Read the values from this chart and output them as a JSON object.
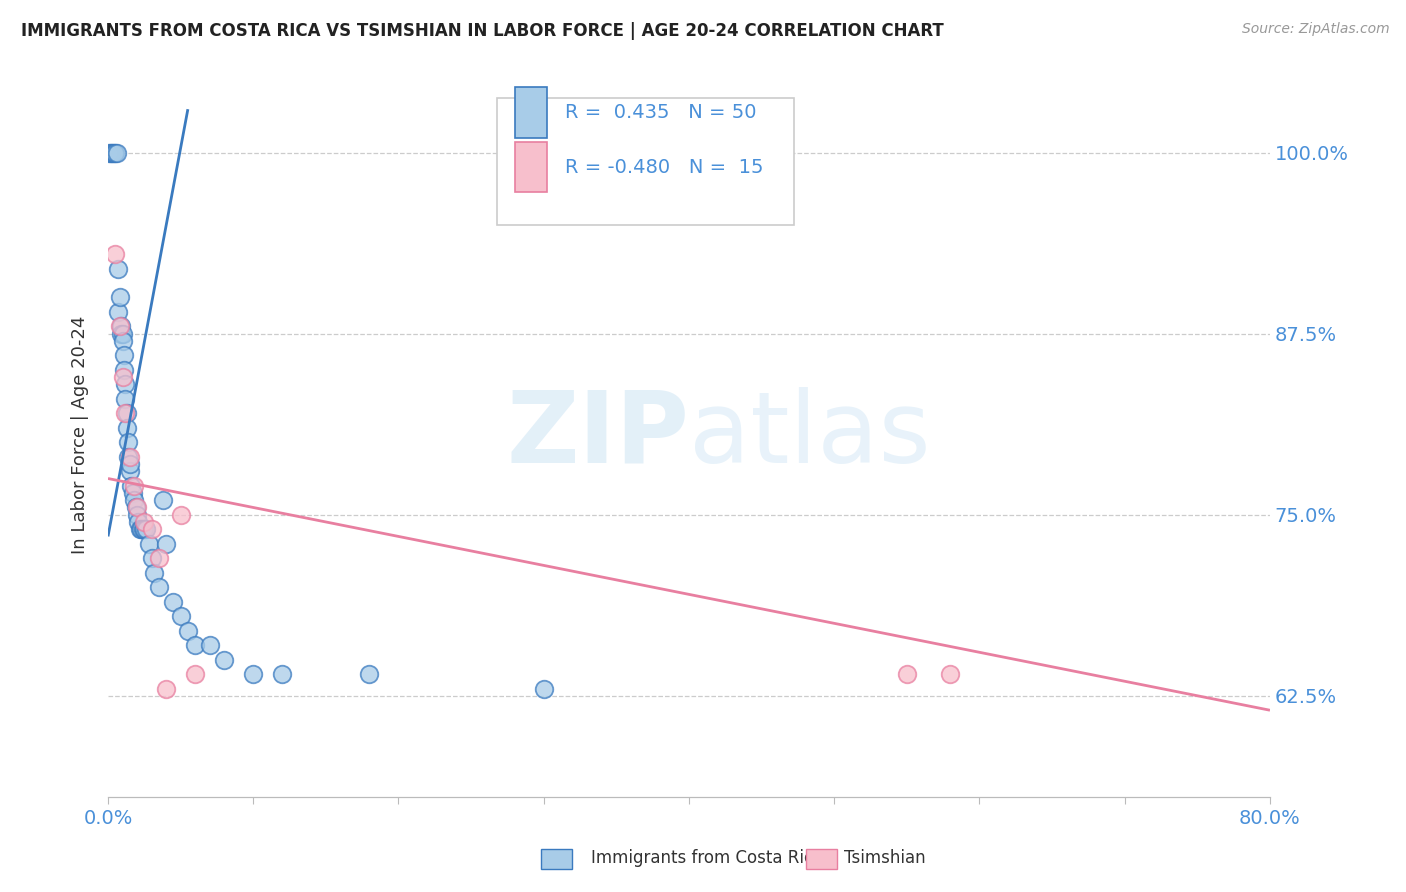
{
  "title": "IMMIGRANTS FROM COSTA RICA VS TSIMSHIAN IN LABOR FORCE | AGE 20-24 CORRELATION CHART",
  "source": "Source: ZipAtlas.com",
  "ylabel": "In Labor Force | Age 20-24",
  "ytick_labels": [
    "62.5%",
    "75.0%",
    "87.5%",
    "100.0%"
  ],
  "ytick_values": [
    0.625,
    0.75,
    0.875,
    1.0
  ],
  "xlim": [
    0.0,
    0.8
  ],
  "ylim": [
    0.555,
    1.055
  ],
  "legend_r1": "R =  0.435",
  "legend_n1": "N = 50",
  "legend_r2": "R = -0.480",
  "legend_n2": "N =  15",
  "color_blue": "#a8cce8",
  "color_pink": "#f7bfcc",
  "color_blue_line": "#3a7abf",
  "color_pink_line": "#e87fa0",
  "blue_scatter_x": [
    0.001,
    0.002,
    0.003,
    0.004,
    0.005,
    0.006,
    0.007,
    0.007,
    0.008,
    0.009,
    0.009,
    0.01,
    0.01,
    0.011,
    0.011,
    0.012,
    0.012,
    0.013,
    0.013,
    0.014,
    0.014,
    0.015,
    0.015,
    0.016,
    0.017,
    0.018,
    0.019,
    0.02,
    0.021,
    0.022,
    0.023,
    0.024,
    0.025,
    0.026,
    0.028,
    0.03,
    0.032,
    0.035,
    0.038,
    0.04,
    0.045,
    0.05,
    0.055,
    0.06,
    0.07,
    0.08,
    0.1,
    0.12,
    0.18,
    0.3
  ],
  "blue_scatter_y": [
    1.0,
    1.0,
    1.0,
    1.0,
    1.0,
    1.0,
    0.92,
    0.89,
    0.9,
    0.88,
    0.875,
    0.875,
    0.87,
    0.86,
    0.85,
    0.84,
    0.83,
    0.82,
    0.81,
    0.8,
    0.79,
    0.78,
    0.785,
    0.77,
    0.765,
    0.76,
    0.755,
    0.75,
    0.745,
    0.74,
    0.74,
    0.74,
    0.74,
    0.74,
    0.73,
    0.72,
    0.71,
    0.7,
    0.76,
    0.73,
    0.69,
    0.68,
    0.67,
    0.66,
    0.66,
    0.65,
    0.64,
    0.64,
    0.64,
    0.63
  ],
  "pink_scatter_x": [
    0.005,
    0.008,
    0.01,
    0.012,
    0.015,
    0.018,
    0.02,
    0.025,
    0.03,
    0.035,
    0.04,
    0.05,
    0.06,
    0.55,
    0.58
  ],
  "pink_scatter_y": [
    0.93,
    0.88,
    0.845,
    0.82,
    0.79,
    0.77,
    0.755,
    0.745,
    0.74,
    0.72,
    0.63,
    0.75,
    0.64,
    0.64,
    0.64
  ],
  "blue_line_x": [
    0.0,
    0.055
  ],
  "blue_line_y": [
    0.735,
    1.03
  ],
  "pink_line_x": [
    0.0,
    0.8
  ],
  "pink_line_y": [
    0.775,
    0.615
  ],
  "watermark_line1": "ZIP",
  "watermark_line2": "atlas",
  "background_color": "#ffffff",
  "grid_color": "#cccccc",
  "text_color_blue": "#4a90d9",
  "text_color_dark": "#333333",
  "text_color_source": "#999999"
}
